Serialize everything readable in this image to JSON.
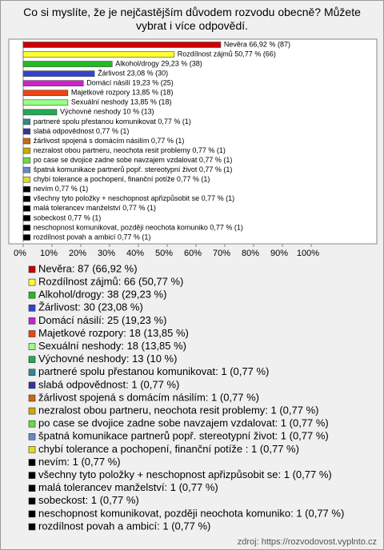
{
  "chart_data": {
    "type": "barh",
    "title": "Co si myslíte, že je nejčastějším důvodem rozvodu obecně? Můžete vybrat i více odpovědí.",
    "categories": [
      "Nevěra",
      "Rozdílnost zájmů",
      "Alkohol/drogy",
      "Žárlivost",
      "Domácí násilí",
      "Majetkové rozpory",
      "Sexuální neshody",
      "Výchovné neshody",
      "partneré spolu přestanou komunikovat",
      "slabá odpovědnost",
      "žárlivost spojená s domácím násilím",
      "nezralost obou partneru, neochota resit problemy",
      "po case se dvojice zadne sobe navzajem vzdalovat",
      "špatná komunikace partnerů popř. stereotypní život",
      "chybí tolerance a pochopení, finanční potíže ",
      "nevím",
      "všechny tyto položky + neschopnost apřizpůsobit se",
      "malá tolerancev manželství",
      "sobeckost",
      "neschopnost komunikovat, později neochota komuniko",
      "rozdílnost povah a ambicí"
    ],
    "values": [
      66.92,
      50.77,
      29.23,
      23.08,
      19.23,
      13.85,
      13.85,
      10,
      0.77,
      0.77,
      0.77,
      0.77,
      0.77,
      0.77,
      0.77,
      0.77,
      0.77,
      0.77,
      0.77,
      0.77,
      0.77
    ],
    "counts": [
      87,
      66,
      38,
      30,
      25,
      18,
      18,
      13,
      1,
      1,
      1,
      1,
      1,
      1,
      1,
      1,
      1,
      1,
      1,
      1,
      1
    ],
    "value_labels": [
      "Nevěra 66,92 % (87)",
      "Rozdílnost zájmů 50,77 % (66)",
      "Alkohol/drogy 29,23 % (38)",
      "Žárlivost 23,08 % (30)",
      "Domácí násilí 19,23 % (25)",
      "Majetkové rozpory 13,85 % (18)",
      "Sexuální neshody 13,85 % (18)",
      "Výchovné neshody 10 % (13)",
      "partneré spolu přestanou komunikovat 0,77 % (1)",
      "slabá odpovědnost 0,77 % (1)",
      "žárlivost spojená s domácím násilím 0,77 % (1)",
      "nezralost obou partneru, neochota resit problemy 0,77 % (1)",
      "po case se dvojice zadne sobe navzajem vzdalovat 0,77 % (1)",
      "špatná komunikace partnerů popř. stereotypní život 0,77 % (1)",
      "chybí tolerance a pochopení, finanční potíže  0,77 % (1)",
      "nevím 0,77 % (1)",
      "všechny tyto položky + neschopnost apřizpůsobit se 0,77 % (1)",
      "malá tolerancev manželství 0,77 % (1)",
      "sobeckost 0,77 % (1)",
      "neschopnost komunikovat, později neochota komuniko 0,77 % (1)",
      "rozdílnost povah a ambicí 0,77 % (1)"
    ],
    "legend_labels": [
      "Nevěra: 87 (66,92 %)",
      "Rozdílnost zájmů: 66 (50,77 %)",
      "Alkohol/drogy: 38 (29,23 %)",
      "Žárlivost: 30 (23,08 %)",
      "Domácí násilí: 25 (19,23 %)",
      "Majetkové rozpory: 18 (13,85 %)",
      "Sexuální neshody: 18 (13,85 %)",
      "Výchovné neshody: 13 (10 %)",
      "partneré spolu přestanou komunikovat: 1 (0,77 %)",
      "slabá odpovědnost: 1 (0,77 %)",
      "žárlivost spojená s domácím násilím: 1 (0,77 %)",
      "nezralost obou partneru, neochota resit problemy: 1 (0,77 %)",
      "po case se dvojice zadne sobe navzajem vzdalovat: 1 (0,77 %)",
      "špatná komunikace partnerů popř. stereotypní život: 1 (0,77 %)",
      "chybí tolerance a pochopení, finanční potíže : 1 (0,77 %)",
      "nevím: 1 (0,77 %)",
      "všechny tyto položky + neschopnost apřizpůsobit se: 1 (0,77 %)",
      "malá tolerancev manželství: 1 (0,77 %)",
      "sobeckost: 1 (0,77 %)",
      "neschopnost komunikovat, později neochota komuniko: 1 (0,77 %)",
      "rozdílnost povah a ambicí: 1 (0,77 %)"
    ],
    "colors": [
      "#cc0000",
      "#ffff33",
      "#22bb22",
      "#3344cc",
      "#cc22cc",
      "#ee4411",
      "#99ff88",
      "#22aa55",
      "#338888",
      "#333399",
      "#cc6611",
      "#ccaa00",
      "#66dd44",
      "#6688cc",
      "#dddd22",
      "#000000",
      "#000000",
      "#000000",
      "#000000",
      "#000000",
      "#000000"
    ],
    "xlim": [
      0,
      100
    ],
    "xticks": [
      {
        "value": 0,
        "label": "0%"
      },
      {
        "value": 10,
        "label": "10%"
      },
      {
        "value": 20,
        "label": "20%"
      },
      {
        "value": 30,
        "label": "30%"
      },
      {
        "value": 40,
        "label": "40%"
      },
      {
        "value": 50,
        "label": "50%"
      },
      {
        "value": 60,
        "label": "60%"
      },
      {
        "value": 70,
        "label": "70%"
      },
      {
        "value": 80,
        "label": "80%"
      },
      {
        "value": 90,
        "label": "90%"
      },
      {
        "value": 100,
        "label": "100%"
      }
    ],
    "grid": false,
    "source": "zdroj: https://rozvodovost.vyplnto.cz"
  }
}
